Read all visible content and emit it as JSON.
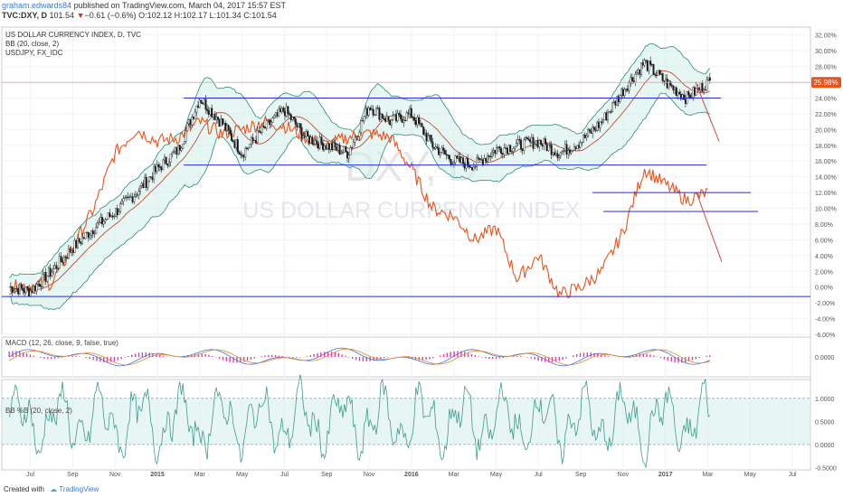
{
  "header": {
    "author": "graham.edwards84",
    "published": "published on TradingView.com, March 04, 2017 15:57 EST",
    "symbol": "TVC:DXY, D",
    "last": "101.54",
    "change": "−0.61 (−0.6%)",
    "ohlc": {
      "o": "O:102.12",
      "h": "H:102.17",
      "l": "L:101.34",
      "c": "C:101.54"
    }
  },
  "legend_main": [
    "US DOLLAR CURRENCY INDEX, D, TVC",
    "BB (20, close, 2)",
    "USDJPY, FX_IDC"
  ],
  "watermark": {
    "ticker": "DXY, D",
    "name": "US DOLLAR CURRENCY INDEX"
  },
  "macd_label": "MACD (12, 26, close, 9, false, true)",
  "bbp_label": "BB %B (20, close, 2)",
  "footer": {
    "created_with": "Created with",
    "brand": "TradingView"
  },
  "colors": {
    "price": "#1b1b1b",
    "usdjpy": "#e8541e",
    "bb_band": "#2e8b7a",
    "bb_fill": "#cfeee9",
    "bb_basis": "#c0392b",
    "hline": "#2b2bd6",
    "arrow": "#d64545",
    "macd": "#3a7bd5",
    "signal": "#e8872e",
    "hist": "#e23fa0",
    "bbp": "#3f9a8c",
    "last_label": "#e8541e"
  },
  "chart_data": [
    {
      "type": "line",
      "title": "US DOLLAR CURRENCY INDEX, D, TVC",
      "y_axis": {
        "unit": "%",
        "range": [
          -6,
          33
        ],
        "ticks": [
          "32.00%",
          "30.00%",
          "28.00%",
          "26.00%",
          "24.00%",
          "22.00%",
          "20.00%",
          "18.00%",
          "16.00%",
          "14.00%",
          "12.00%",
          "10.00%",
          "8.00%",
          "6.00%",
          "4.00%",
          "2.00%",
          "0.00%",
          "-2.00%",
          "-4.00%",
          "-6.00%"
        ]
      },
      "x_axis": {
        "ticks": [
          "Jul",
          "Sep",
          "Nov",
          "2015",
          "Mar",
          "May",
          "Jul",
          "Sep",
          "Nov",
          "2016",
          "Mar",
          "May",
          "Jul",
          "Sep",
          "Nov",
          "2017",
          "Mar",
          "May",
          "Jul"
        ]
      },
      "last_value_label": "25.98%",
      "series": [
        {
          "name": "US DOLLAR CURRENCY INDEX",
          "x": [
            "2014-06",
            "2014-07",
            "2014-08",
            "2014-09",
            "2014-10",
            "2014-11",
            "2014-12",
            "2015-01",
            "2015-02",
            "2015-03",
            "2015-04",
            "2015-05",
            "2015-06",
            "2015-07",
            "2015-08",
            "2015-09",
            "2015-10",
            "2015-11",
            "2015-12",
            "2016-01",
            "2016-02",
            "2016-03",
            "2016-04",
            "2016-05",
            "2016-06",
            "2016-07",
            "2016-08",
            "2016-09",
            "2016-10",
            "2016-11",
            "2016-12",
            "2017-01",
            "2017-02",
            "2017-03"
          ],
          "values": [
            0,
            -0.5,
            2,
            5,
            7.5,
            9.5,
            12,
            15,
            17.5,
            24,
            21,
            17,
            20,
            22.5,
            19,
            18,
            17,
            23,
            21,
            22,
            18,
            16,
            15.5,
            17.5,
            18,
            18.5,
            17,
            18.5,
            21,
            25,
            28.5,
            26,
            24,
            26
          ]
        },
        {
          "name": "USDJPY",
          "x": [
            "2014-06",
            "2014-08",
            "2014-09",
            "2014-10",
            "2014-11",
            "2014-12",
            "2015-01",
            "2015-02",
            "2015-03",
            "2015-04",
            "2015-05",
            "2015-06",
            "2015-07",
            "2015-08",
            "2015-09",
            "2015-10",
            "2015-11",
            "2015-12",
            "2016-01",
            "2016-02",
            "2016-03",
            "2016-04",
            "2016-05",
            "2016-06",
            "2016-07",
            "2016-08",
            "2016-09",
            "2016-10",
            "2016-11",
            "2016-12",
            "2017-01",
            "2017-02",
            "2017-03"
          ],
          "values": [
            0,
            0.5,
            5,
            10,
            17,
            20,
            18.5,
            19,
            21,
            19.5,
            20,
            21,
            20.5,
            19,
            18,
            19,
            19.5,
            19,
            15,
            10,
            9,
            6,
            7.5,
            1,
            4,
            -1,
            0,
            2,
            7,
            15,
            13,
            11,
            12
          ]
        }
      ],
      "horizontal_lines": [
        24,
        15.5,
        -1.2,
        12,
        9.6
      ]
    },
    {
      "type": "line",
      "title": "MACD (12, 26, close, 9, false, true)",
      "y_axis": {
        "ticks": [
          "0.0000"
        ]
      }
    },
    {
      "type": "line",
      "title": "BB %B (20, close, 2)",
      "y_axis": {
        "ticks": [
          "1.0000",
          "0.5000",
          "0.0000",
          "-0.5000"
        ]
      }
    }
  ]
}
